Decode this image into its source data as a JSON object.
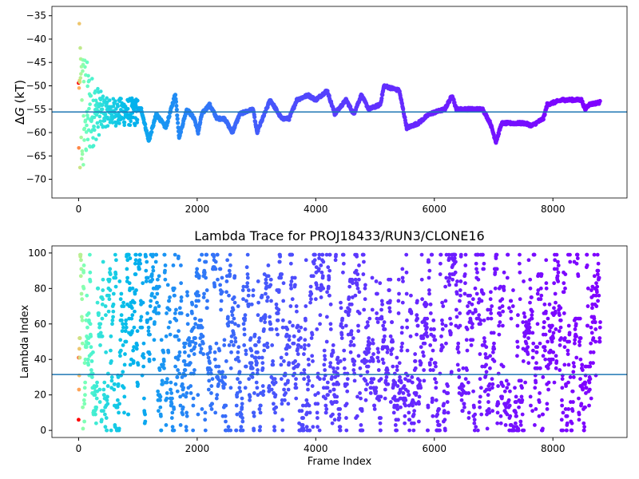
{
  "chart_data": [
    {
      "type": "scatter",
      "title": "",
      "xlabel": "",
      "ylabel_prefix": "Δ",
      "ylabel_var": "G",
      "ylabel_suffix": " (kT)",
      "xlim": [
        -450,
        9250
      ],
      "ylim": [
        -74,
        -33
      ],
      "xticks": [
        "0",
        "2000",
        "4000",
        "6000",
        "8000"
      ],
      "xtick_values": [
        0,
        2000,
        4000,
        6000,
        8000
      ],
      "yticks": [
        "−35",
        "−40",
        "−45",
        "−50",
        "−55",
        "−60",
        "−65",
        "−70"
      ],
      "ytick_values": [
        -35,
        -40,
        -45,
        -50,
        -55,
        -60,
        -65,
        -70
      ],
      "reference_line": -55.6,
      "reference_color": "#1f77b4",
      "colormap": "rainbow (reversed, by frame)",
      "early_scatter_range": [
        0,
        1000
      ],
      "trace": [
        [
          1000,
          -55
        ],
        [
          1056,
          -55
        ],
        [
          1184,
          -61.8
        ],
        [
          1312,
          -56
        ],
        [
          1472,
          -59
        ],
        [
          1632,
          -51.7
        ],
        [
          1696,
          -61
        ],
        [
          1824,
          -55
        ],
        [
          1952,
          -57
        ],
        [
          2016,
          -60
        ],
        [
          2080,
          -56
        ],
        [
          2208,
          -54
        ],
        [
          2336,
          -57
        ],
        [
          2464,
          -57
        ],
        [
          2592,
          -60
        ],
        [
          2720,
          -56
        ],
        [
          2944,
          -55
        ],
        [
          3008,
          -60
        ],
        [
          3104,
          -57
        ],
        [
          3232,
          -53
        ],
        [
          3424,
          -57
        ],
        [
          3552,
          -57
        ],
        [
          3680,
          -53
        ],
        [
          3872,
          -52
        ],
        [
          4000,
          -53
        ],
        [
          4192,
          -51
        ],
        [
          4320,
          -56
        ],
        [
          4512,
          -53
        ],
        [
          4640,
          -56
        ],
        [
          4768,
          -52
        ],
        [
          4896,
          -55
        ],
        [
          5088,
          -54
        ],
        [
          5152,
          -50
        ],
        [
          5408,
          -51
        ],
        [
          5536,
          -59
        ],
        [
          5728,
          -58
        ],
        [
          5920,
          -56
        ],
        [
          6176,
          -55
        ],
        [
          6304,
          -52
        ],
        [
          6368,
          -55
        ],
        [
          6816,
          -55
        ],
        [
          6944,
          -58
        ],
        [
          7040,
          -62
        ],
        [
          7136,
          -58
        ],
        [
          7520,
          -58
        ],
        [
          7648,
          -58.5
        ],
        [
          7840,
          -57
        ],
        [
          7904,
          -54
        ],
        [
          8160,
          -53
        ],
        [
          8480,
          -53
        ],
        [
          8544,
          -55
        ],
        [
          8608,
          -54
        ],
        [
          8800,
          -53.5
        ]
      ]
    },
    {
      "type": "scatter",
      "title": "Lambda Trace for PROJ18433/RUN3/CLONE16",
      "xlabel": "Frame Index",
      "ylabel": "Lambda Index",
      "xlim": [
        -450,
        9250
      ],
      "ylim": [
        -4,
        104
      ],
      "xticks": [
        "0",
        "2000",
        "4000",
        "6000",
        "8000"
      ],
      "xtick_values": [
        0,
        2000,
        4000,
        6000,
        8000
      ],
      "yticks": [
        "0",
        "20",
        "40",
        "60",
        "80",
        "100"
      ],
      "ytick_values": [
        0,
        20,
        40,
        60,
        80,
        100
      ],
      "reference_line": 31.5,
      "reference_color": "#1f77b4",
      "frame_range": [
        0,
        8800
      ],
      "lambda_range": [
        0,
        99
      ]
    }
  ]
}
